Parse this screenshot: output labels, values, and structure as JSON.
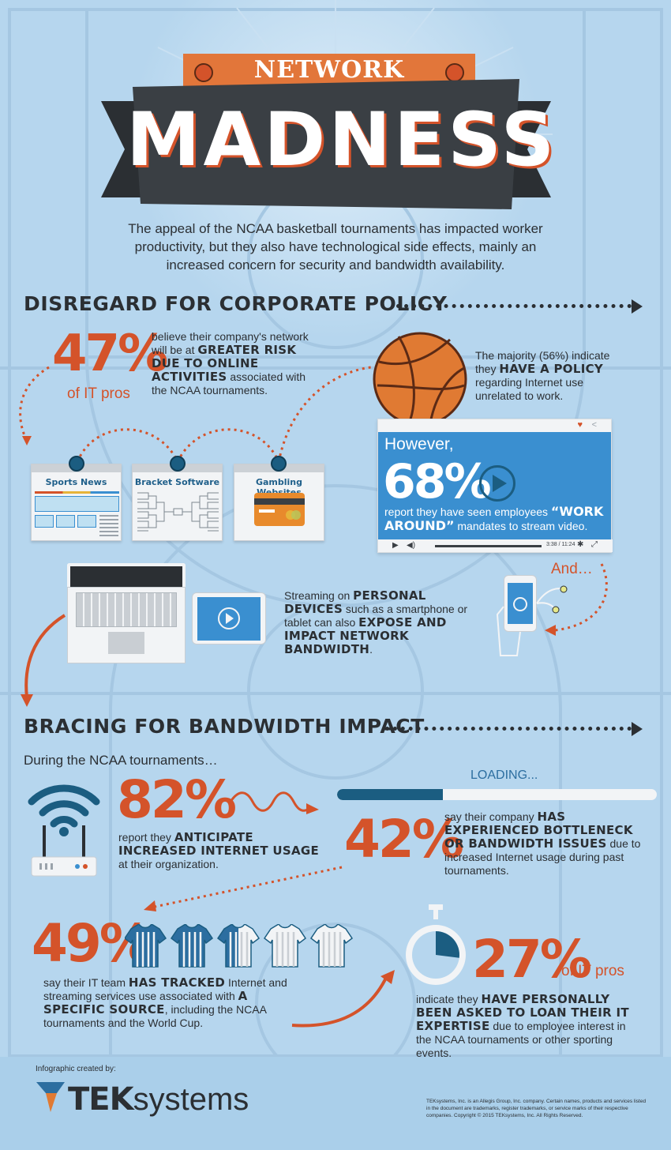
{
  "header": {
    "ribbon_text": "NETWORK",
    "title": "MADNESS",
    "intro": "The appeal of the NCAA basketball tournaments has impacted worker productivity, but they also have technological side effects, mainly an increased concern for security and bandwidth availability."
  },
  "section1": {
    "heading": "DISREGARD FOR CORPORATE POLICY",
    "stat47": {
      "value": "47%",
      "label": "of IT pros",
      "text_pre": "believe their company's network will be at ",
      "text_bold": "GREATER RISK DUE TO ONLINE ACTIVITIES",
      "text_post": " associated with the NCAA tournaments."
    },
    "cards": [
      "Sports News",
      "Bracket Software",
      "Gambling Websites"
    ],
    "policy": {
      "text_pre": "The majority (56%) indicate they ",
      "text_bold": "HAVE A POLICY",
      "text_post": " regarding Internet use unrelated to work."
    },
    "video": {
      "however": "However,",
      "value": "68%",
      "text_pre": "report they have seen employees ",
      "text_bold": "“WORK AROUND”",
      "text_post": " mandates to stream video.",
      "time": "3:38 / 11:24"
    },
    "and_text": "And…",
    "devices": {
      "t1": "Streaming on ",
      "b1": "PERSONAL DEVICES",
      "t2": " such as a smartphone or tablet can also ",
      "b2": "EXPOSE AND IMPACT NETWORK BANDWIDTH",
      "t3": "."
    }
  },
  "section2": {
    "heading": "BRACING FOR BANDWIDTH IMPACT",
    "subheading": "During the NCAA tournaments…",
    "stat82": {
      "value": "82%",
      "t1": "report they ",
      "b1": "ANTICIPATE INCREASED INTERNET USAGE",
      "t2": " at their organization."
    },
    "loading": {
      "label": "LOADING...",
      "progress": 0.33
    },
    "stat42": {
      "value": "42%",
      "t1": "say their company ",
      "b1": "HAS EXPERIENCED BOTTLENECK OR BANDWIDTH ISSUES",
      "t2": " due to increased Internet usage during past tournaments."
    },
    "stat49": {
      "value": "49%",
      "t1": "say their IT team ",
      "b1": "HAS TRACKED",
      "t2": " Internet and streaming services use associated with ",
      "b2": "A SPECIFIC SOURCE",
      "t3": ", including the NCAA tournaments and the World Cup.",
      "jerseys_filled": 2.5,
      "jerseys_total": 5
    },
    "stat27": {
      "value": "27%",
      "label": "of IT pros",
      "t1": "indicate they ",
      "b1": "HAVE PERSONALLY BEEN ASKED TO LOAN THEIR IT EXPERTISE",
      "t2": " due to employee interest in the NCAA tournaments or other sporting events."
    }
  },
  "footer": {
    "created_by": "Infographic created by:",
    "logo_bold": "TEK",
    "logo_light": "systems",
    "legal": "TEKsystems, Inc. is an Allegis Group, Inc. company. Certain names, products and services listed in the document are trademarks, register trademarks, or service marks of their respective companies. Copyright © 2015 TEKsystems, Inc. All Rights Reserved."
  },
  "colors": {
    "accent": "#d4532a",
    "dark": "#2b2f33",
    "blue": "#3a8fd0",
    "navy": "#1b5d81",
    "bg": "#b6d6ee"
  }
}
